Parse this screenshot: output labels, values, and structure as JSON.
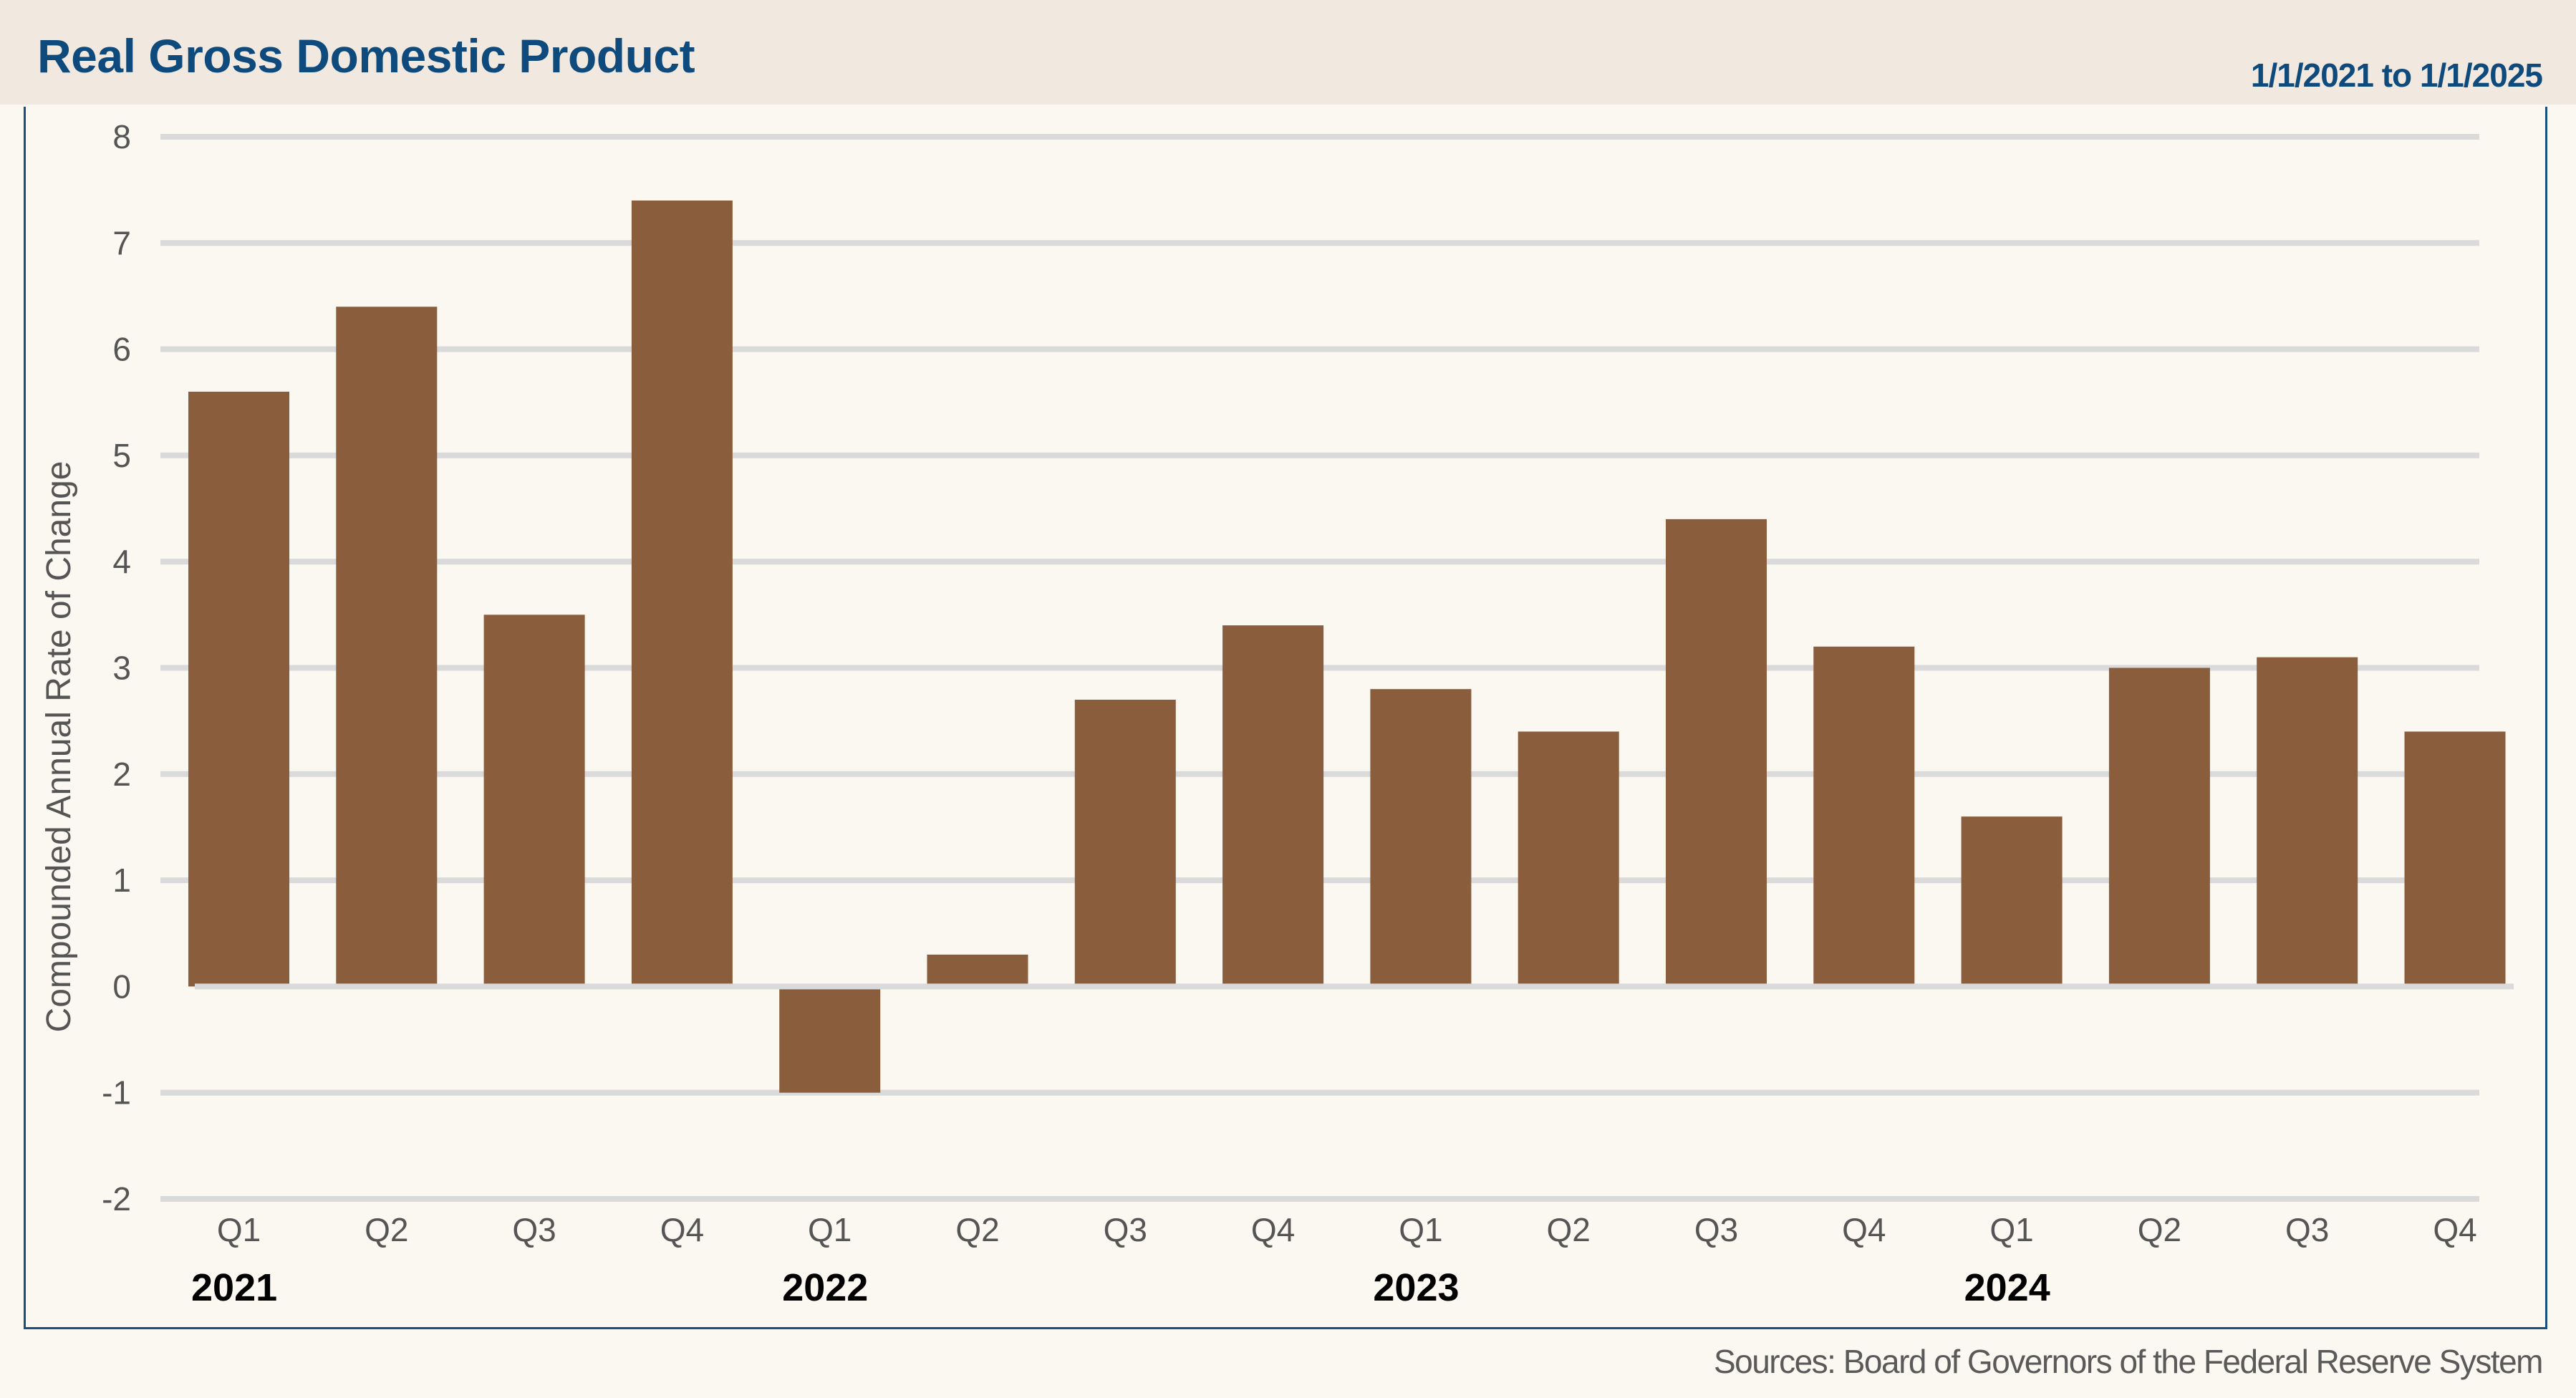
{
  "header": {
    "title": "Real Gross Domestic Product",
    "date_range": "1/1/2021 to 1/1/2025"
  },
  "footer": {
    "source": "Sources: Board of Governors of the Federal Reserve System"
  },
  "colors": {
    "bar": "#8a5d3d",
    "title": "#0f4a7c",
    "frame": "#1a4f82",
    "gridline": "#dadada",
    "header_bg": "#f1e9df",
    "plot_bg": "#fbf7f1"
  },
  "chart_data": {
    "type": "bar",
    "title": "Real Gross Domestic Product",
    "subtitle": "1/1/2021 to 1/1/2025",
    "xlabel": "",
    "ylabel": "Compounded Annual Rate of Change",
    "ylim": [
      -2,
      8
    ],
    "yticks": [
      8,
      7,
      6,
      5,
      4,
      3,
      2,
      1,
      0,
      -1,
      -2
    ],
    "ytick_labels": [
      "8",
      "7",
      "6",
      "5",
      "4",
      "3",
      "2",
      "1",
      "0",
      "-1",
      "-2"
    ],
    "grid": true,
    "legend": "none",
    "categories": [
      "Q1",
      "Q2",
      "Q3",
      "Q4",
      "Q1",
      "Q2",
      "Q3",
      "Q4",
      "Q1",
      "Q2",
      "Q3",
      "Q4",
      "Q1",
      "Q2",
      "Q3",
      "Q4"
    ],
    "year_groups": [
      {
        "label": "2021",
        "start_index": 0
      },
      {
        "label": "2022",
        "start_index": 4
      },
      {
        "label": "2023",
        "start_index": 8
      },
      {
        "label": "2024",
        "start_index": 12
      }
    ],
    "series": [
      {
        "name": "Real GDP",
        "values": [
          5.6,
          6.4,
          3.5,
          7.4,
          -1.0,
          0.3,
          2.7,
          3.4,
          2.8,
          2.4,
          4.4,
          3.2,
          1.6,
          3.0,
          3.1,
          2.4
        ]
      }
    ],
    "source": "Sources: Board of Governors of the Federal Reserve System"
  }
}
